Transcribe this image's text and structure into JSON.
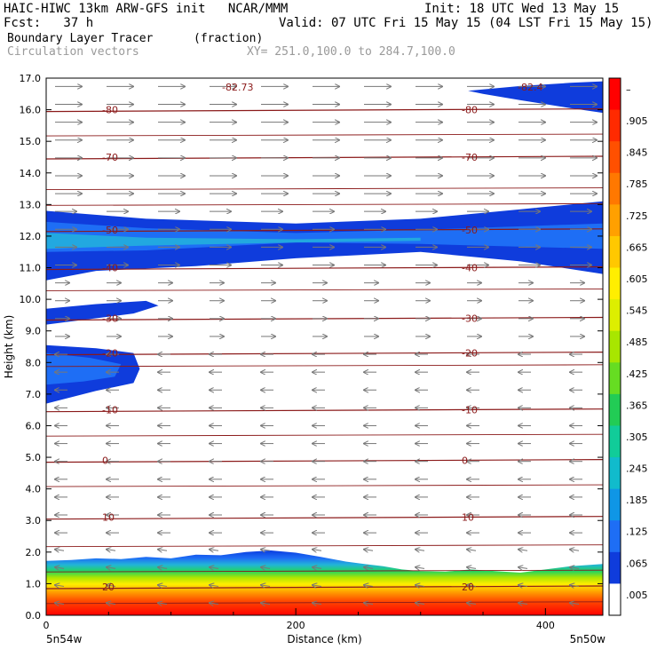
{
  "header": {
    "line1_left": "HAIC-HIWC 13km ARW-GFS init   NCAR/MMM",
    "line1_right": "Init: 18 UTC Wed 13 May 15",
    "line2_left": "Fcst:   37 h",
    "line2_right": "Valid: 07 UTC Fri 15 May 15 (04 LST Fri 15 May 15)",
    "field_name": "Boundary Layer Tracer",
    "field_units": "(fraction)",
    "vector_label": "Circulation vectors",
    "xsec_label": "XY= 251.0,100.0 to 284.7,100.0"
  },
  "axis_bottom": {
    "left_label": "5n54w",
    "right_label": "5n50w"
  },
  "chart_data": {
    "type": "heatmap",
    "title": "Boundary Layer Tracer",
    "units": "(fraction)",
    "xlabel": "Distance (km)",
    "ylabel": "Height (km)",
    "xlim": [
      0,
      446
    ],
    "ylim": [
      0,
      17
    ],
    "x_ticks": [
      0,
      200,
      400
    ],
    "y_ticks": [
      "0.0",
      "1.0",
      "2.0",
      "3.0",
      "4.0",
      "5.0",
      "6.0",
      "7.0",
      "8.0",
      "9.0",
      "10.0",
      "11.0",
      "12.0",
      "13.0",
      "14.0",
      "15.0",
      "16.0",
      "17.0"
    ],
    "colorbar_ticks": [
      "–",
      ".905",
      ".845",
      ".785",
      ".725",
      ".665",
      ".605",
      ".545",
      ".485",
      ".425",
      ".365",
      ".305",
      ".245",
      ".185",
      ".125",
      ".065",
      ".005"
    ],
    "colorbar_colors": [
      "#ff0000",
      "#ff2a00",
      "#ff5000",
      "#ff7800",
      "#ffa000",
      "#ffc800",
      "#ffee00",
      "#ddee00",
      "#a8e600",
      "#66dd22",
      "#22cc55",
      "#11cc99",
      "#11bbcc",
      "#0f96e6",
      "#1e6ef5",
      "#0f3cdc",
      "#ffffff"
    ],
    "temperature_contours": [
      {
        "label": "-80",
        "height": 16.0
      },
      {
        "label": "-70",
        "height": 14.5
      },
      {
        "label": "-50",
        "height": 12.2
      },
      {
        "label": "-40",
        "height": 11.0
      },
      {
        "label": "-30",
        "height": 9.4
      },
      {
        "label": "-20",
        "height": 8.3
      },
      {
        "label": "-10",
        "height": 6.5
      },
      {
        "label": "0",
        "height": 4.9
      },
      {
        "label": "10",
        "height": 3.1
      },
      {
        "label": "20",
        "height": 0.9
      }
    ],
    "annotations": [
      "-82.73",
      "-82.4"
    ]
  }
}
